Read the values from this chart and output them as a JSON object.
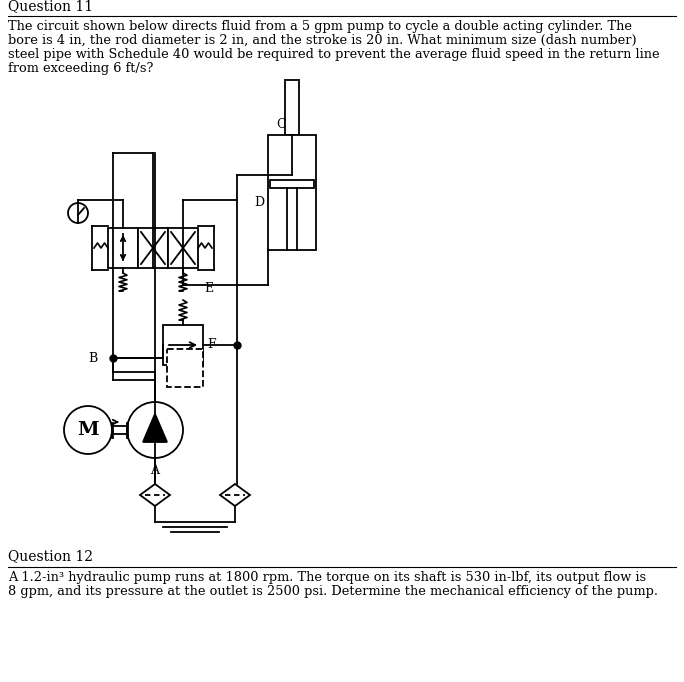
{
  "title_q11": "Question 11",
  "title_q12": "Question 12",
  "text_q11_line1": "The circuit shown below directs fluid from a 5 gpm pump to cycle a double acting cylinder. The",
  "text_q11_line2": "bore is 4 in, the rod diameter is 2 in, and the stroke is 20 in. What minimum size (dash number)",
  "text_q11_line3": "steel pipe with Schedule 40 would be required to prevent the average fluid speed in the return line",
  "text_q11_line4": "from exceeding 6 ft/s?",
  "text_q12_line1": "A 1.2-in³ hydraulic pump runs at 1800 rpm. The torque on its shaft is 530 in-lbf, its output flow is",
  "text_q12_line2": "8 gpm, and its pressure at the outlet is 2500 psi. Determine the mechanical efficiency of the pump.",
  "bg_color": "#ffffff",
  "text_color": "#000000",
  "line_color": "#000000",
  "label_c": "C",
  "label_d": "D",
  "label_e": "E",
  "label_b": "B",
  "label_f": "F",
  "label_a": "A",
  "label_m": "M"
}
